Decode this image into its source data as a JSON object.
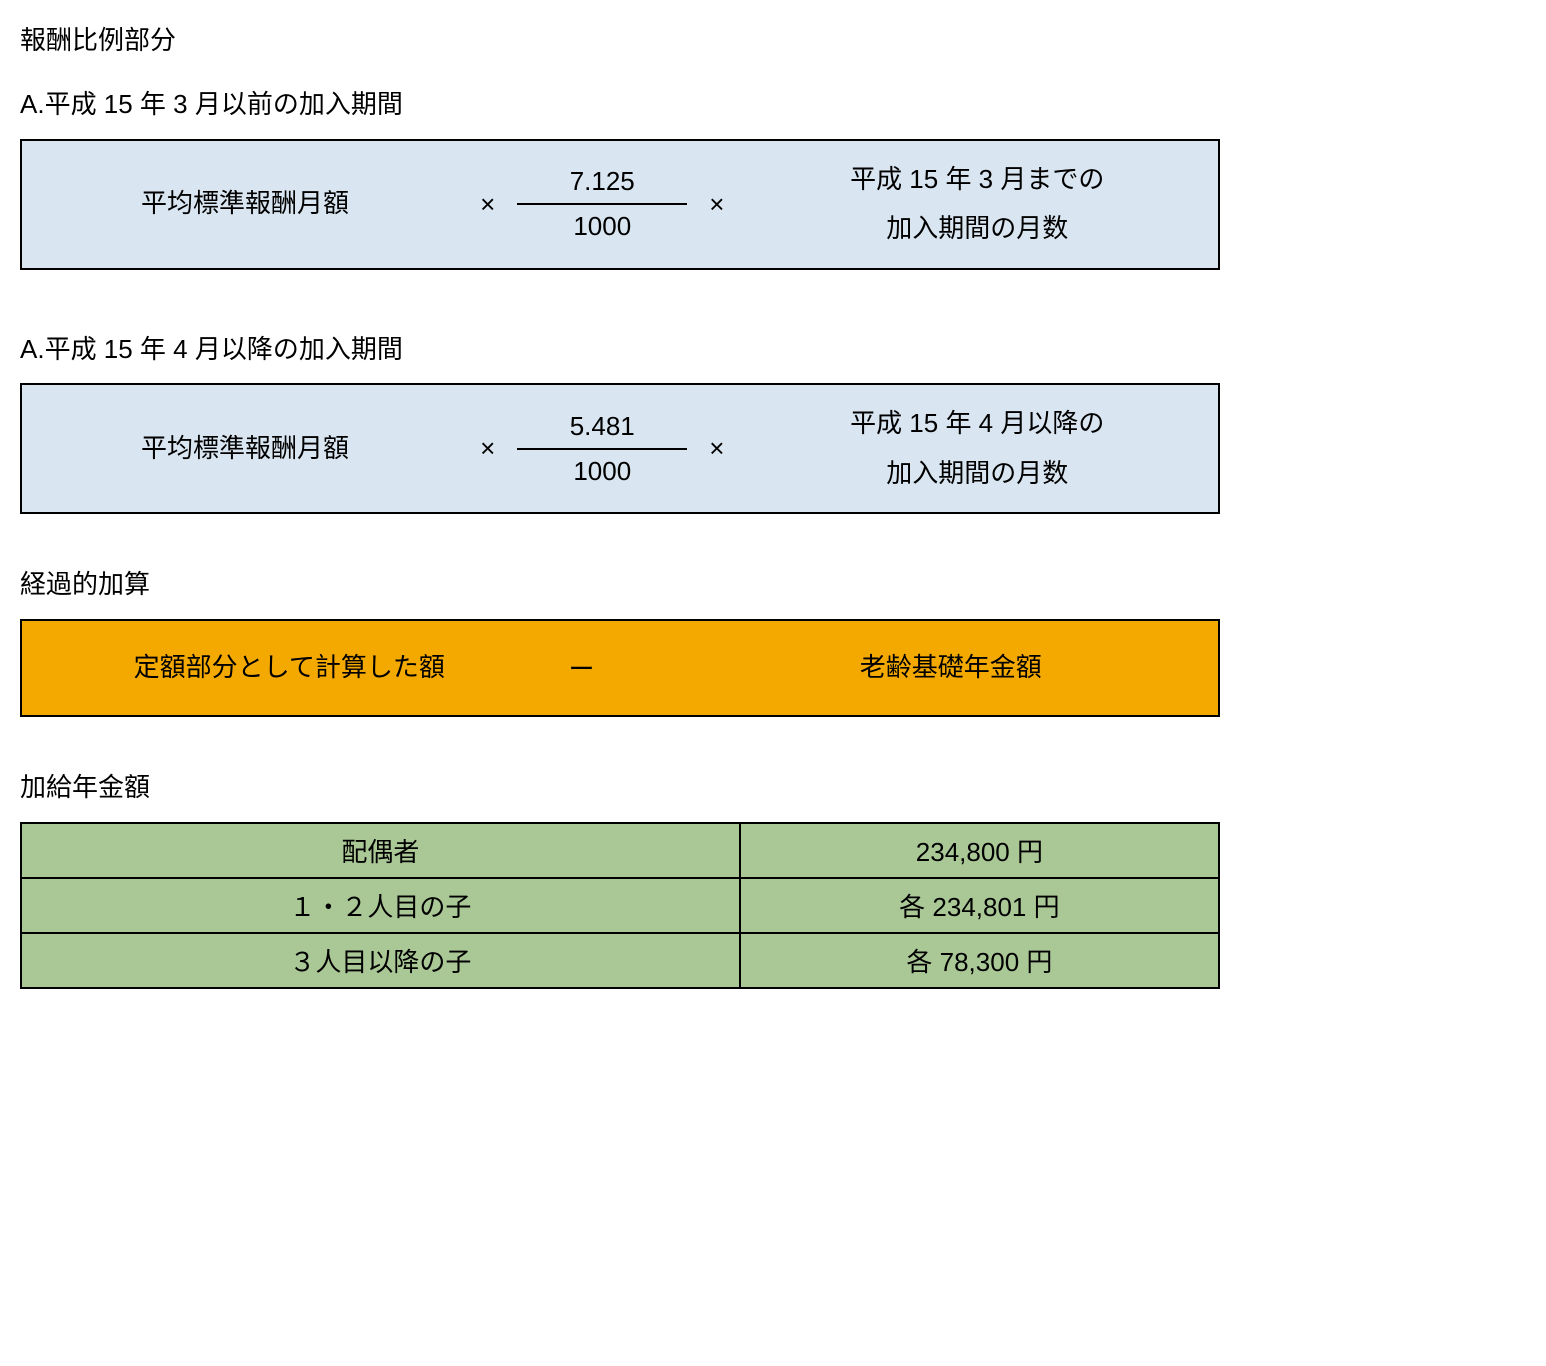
{
  "section1": {
    "title": "報酬比例部分",
    "subA": {
      "heading": "A.平成 15 年 3 月以前の加入期間",
      "term1": "平均標準報酬月額",
      "op1": "×",
      "frac_num": "7.125",
      "frac_den": "1000",
      "op2": "×",
      "term2_line1": "平成 15 年 3 月までの",
      "term2_line2": "加入期間の月数"
    },
    "subB": {
      "heading": "A.平成 15 年 4 月以降の加入期間",
      "term1": "平均標準報酬月額",
      "op1": "×",
      "frac_num": "5.481",
      "frac_den": "1000",
      "op2": "×",
      "term2_line1": "平成 15 年 4 月以降の",
      "term2_line2": "加入期間の月数"
    }
  },
  "section2": {
    "title": "経過的加算",
    "left": "定額部分として計算した額",
    "op": "ー",
    "right": "老齢基礎年金額"
  },
  "section3": {
    "title": "加給年金額",
    "rows": [
      {
        "label": "配偶者",
        "value": "234,800 円"
      },
      {
        "label": "１・２人目の子",
        "value": "各 234,801 円"
      },
      {
        "label": "３人目以降の子",
        "value": "各 78,300 円"
      }
    ]
  },
  "colors": {
    "blue_box_bg": "#d9e5f0",
    "orange_box_bg": "#f4a900",
    "table_bg": "#aac896",
    "border": "#000000",
    "text": "#000000"
  }
}
